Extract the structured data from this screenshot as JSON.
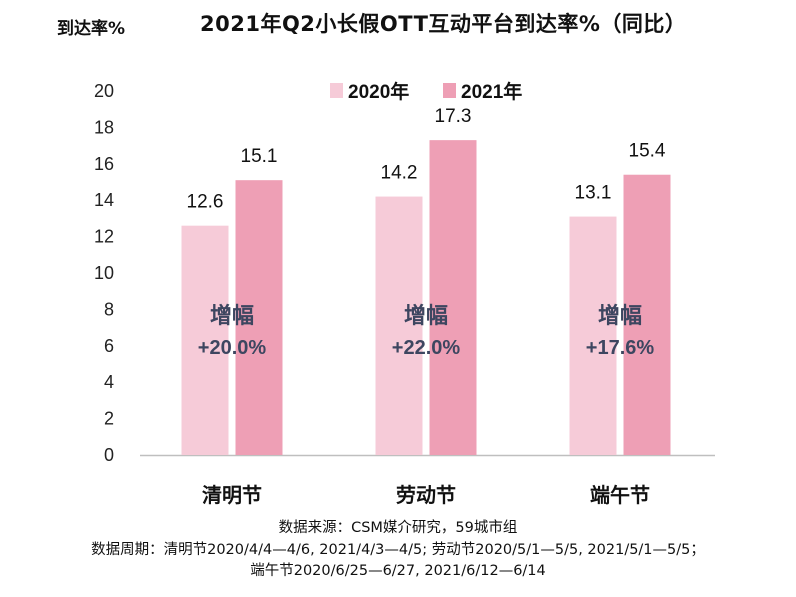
{
  "chart_data": {
    "type": "bar",
    "title": "2021年Q2小长假OTT互动平台到达率%（同比）",
    "ylabel": "到达率%",
    "xlabel": "",
    "ylim": [
      0,
      20
    ],
    "yticks": [
      0,
      2,
      4,
      6,
      8,
      10,
      12,
      14,
      16,
      18,
      20
    ],
    "categories": [
      "清明节",
      "劳动节",
      "端午节"
    ],
    "series": [
      {
        "name": "2020年",
        "values": [
          12.6,
          14.2,
          13.1
        ],
        "color": "#f6cbd8"
      },
      {
        "name": "2021年",
        "values": [
          15.1,
          17.3,
          15.4
        ],
        "color": "#ee9fb5"
      }
    ],
    "annotations": [
      {
        "label": "增幅",
        "value": "+20.0%"
      },
      {
        "label": "增幅",
        "value": "+22.0%"
      },
      {
        "label": "增幅",
        "value": "+17.6%"
      }
    ],
    "grid": false,
    "legend": "top-right"
  },
  "footer": {
    "source": "数据来源：CSM媒介研究，59城市组",
    "period_line1": "数据周期：清明节2020/4/4—4/6, 2021/4/3—4/5; 劳动节2020/5/1—5/5, 2021/5/1—5/5；",
    "period_line2": "端午节2020/6/25—6/27, 2021/6/12—6/14"
  }
}
